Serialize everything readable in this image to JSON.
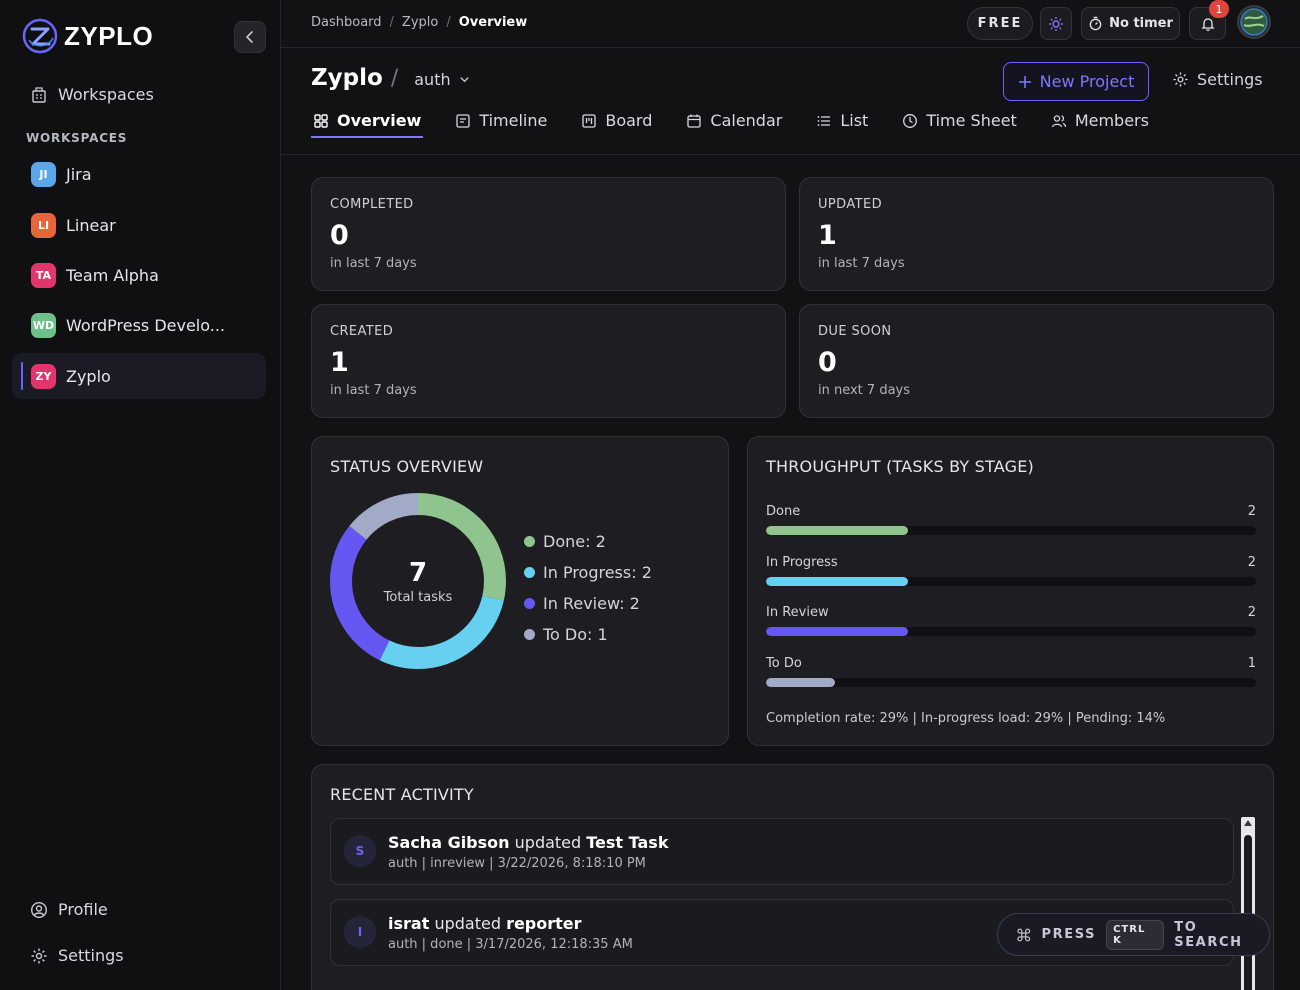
{
  "brand": {
    "name": "ZYPLO"
  },
  "sidebar": {
    "workspaces_link": "Workspaces",
    "section_label": "WORKSPACES",
    "items": [
      {
        "initials": "JI",
        "label": "Jira",
        "color": "#5ba7e8"
      },
      {
        "initials": "LI",
        "label": "Linear",
        "color": "#e8643a"
      },
      {
        "initials": "TA",
        "label": "Team Alpha",
        "color": "#e2356b"
      },
      {
        "initials": "WD",
        "label": "WordPress Develo...",
        "color": "#6cc08a"
      },
      {
        "initials": "ZY",
        "label": "Zyplo",
        "color": "#e2356b"
      }
    ],
    "profile": "Profile",
    "settings": "Settings"
  },
  "topbar": {
    "breadcrumb": [
      "Dashboard",
      "Zyplo",
      "Overview"
    ],
    "plan": "FREE",
    "timer": "No timer",
    "notifications": "1"
  },
  "header": {
    "project": "Zyplo",
    "branch": "auth",
    "new_project": "New Project",
    "settings": "Settings",
    "tabs": [
      "Overview",
      "Timeline",
      "Board",
      "Calendar",
      "List",
      "Time Sheet",
      "Members"
    ]
  },
  "stats": {
    "completed": {
      "label": "COMPLETED",
      "value": "0",
      "sub": "in last 7 days"
    },
    "updated": {
      "label": "UPDATED",
      "value": "1",
      "sub": "in last 7 days"
    },
    "created": {
      "label": "CREATED",
      "value": "1",
      "sub": "in last 7 days"
    },
    "due_soon": {
      "label": "DUE SOON",
      "value": "0",
      "sub": "in next 7 days"
    }
  },
  "status_overview": {
    "title": "STATUS OVERVIEW",
    "total": "7",
    "total_label": "Total tasks",
    "legend": [
      "Done: 2",
      "In Progress: 2",
      "In Review: 2",
      "To Do: 1"
    ]
  },
  "throughput": {
    "title": "THROUGHPUT (TASKS BY STAGE)",
    "rows": [
      {
        "label": "Done",
        "count": "2"
      },
      {
        "label": "In Progress",
        "count": "2"
      },
      {
        "label": "In Review",
        "count": "2"
      },
      {
        "label": "To Do",
        "count": "1"
      }
    ],
    "footer": "Completion rate: 29% | In-progress load: 29% | Pending: 14%"
  },
  "chart_data": [
    {
      "type": "pie",
      "categories": [
        "Done",
        "In Progress",
        "In Review",
        "To Do"
      ],
      "values": [
        2,
        2,
        2,
        1
      ],
      "colors": [
        "#8fc48f",
        "#67d0f0",
        "#6557f2",
        "#a1aac6"
      ]
    },
    {
      "type": "bar",
      "title": "THROUGHPUT (TASKS BY STAGE)",
      "categories": [
        "Done",
        "In Progress",
        "In Review",
        "To Do"
      ],
      "values": [
        2,
        2,
        2,
        1
      ],
      "colors": [
        "#8fc48f",
        "#67d0f0",
        "#6557f2",
        "#a1aac6"
      ],
      "fill_fraction": [
        0.29,
        0.29,
        0.29,
        0.14
      ]
    }
  ],
  "activity": {
    "title": "RECENT ACTIVITY",
    "items": [
      {
        "avatar": "S",
        "user": "Sacha Gibson",
        "action": "updated",
        "target": "Test Task",
        "meta": "auth | inreview | 3/22/2026, 8:18:10 PM"
      },
      {
        "avatar": "I",
        "user": "israt",
        "action": "updated",
        "target": "reporter",
        "meta": "auth | done | 3/17/2026, 12:18:35 AM"
      }
    ]
  },
  "search_hint": {
    "press": "PRESS",
    "keys": "CTRL K",
    "to_search": "TO SEARCH"
  },
  "colors": {
    "accent": "#6c63ff",
    "background": "#121214",
    "card": "#1e1e22"
  }
}
